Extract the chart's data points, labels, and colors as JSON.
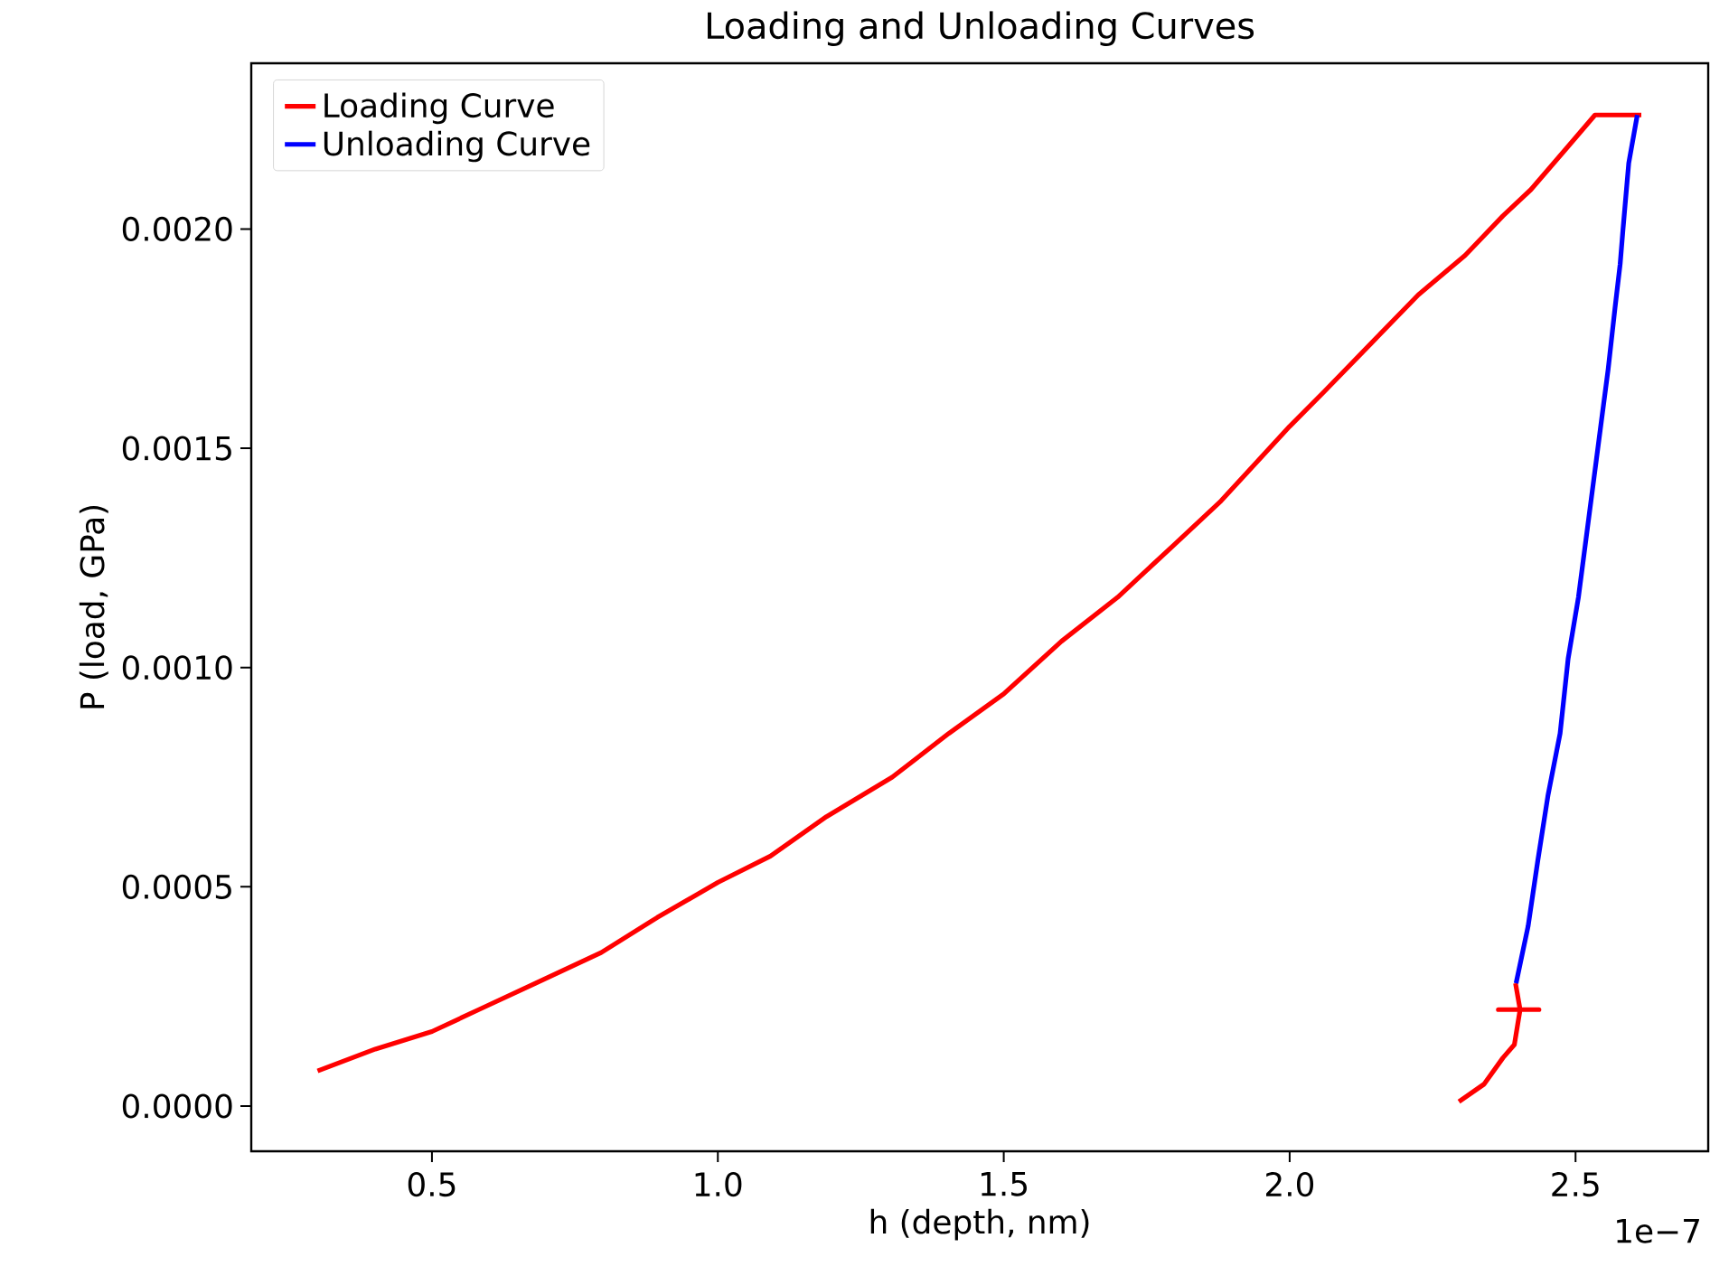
{
  "chart_data": {
    "type": "line",
    "title": "Loading and Unloading Curves",
    "xlabel": "h (depth, nm)",
    "ylabel": "P (load, GPa)",
    "xlim": [
      0.184,
      2.732
    ],
    "ylim": [
      -0.000103,
      0.002378
    ],
    "xticks": [
      0.5,
      {
        "value": 1,
        "label": "1.0"
      },
      1.5,
      {
        "value": 2,
        "label": "2.0"
      },
      2.5
    ],
    "yticks": [
      {
        "value": 0,
        "label": "0.0000"
      },
      {
        "value": 0.0005,
        "label": "0.0005"
      },
      {
        "value": 0.001,
        "label": "0.0010"
      },
      {
        "value": 0.0015,
        "label": "0.0015"
      },
      {
        "value": 0.002,
        "label": "0.0020"
      }
    ],
    "annotations": [
      "1e−7"
    ],
    "legend": "top left",
    "marker": "none",
    "line_style": "solid",
    "series": [
      {
        "name": "Loading Curve",
        "color": "#ff0000",
        "x": [
          0.3,
          0.401,
          0.5,
          0.582,
          0.681,
          0.796,
          0.894,
          1.0,
          1.092,
          1.19,
          1.305,
          1.404,
          1.5,
          1.601,
          1.699,
          1.798,
          1.88,
          2.0,
          2.061,
          2.143,
          2.225,
          2.307,
          2.373,
          2.422,
          2.488,
          2.534,
          2.615,
          null,
          2.296,
          2.34,
          2.373,
          2.393,
          2.403,
          2.365,
          2.436,
          2.403,
          2.395
        ],
        "values": [
          8e-05,
          0.00013,
          0.00017,
          0.00022,
          0.00028,
          0.00035,
          0.00043,
          0.00051,
          0.00057,
          0.00066,
          0.00075,
          0.00085,
          0.00094,
          0.00106,
          0.00116,
          0.00128,
          0.00138,
          0.00155,
          0.00163,
          0.00174,
          0.00185,
          0.00194,
          0.00203,
          0.00209,
          0.00219,
          0.00226,
          0.00226,
          null,
          1e-05,
          5e-05,
          0.00011,
          0.00014,
          0.00022,
          0.00022,
          0.00022,
          0.00022,
          0.00028
        ]
      },
      {
        "name": "Unloading Curve",
        "color": "#0000ff",
        "x": [
          2.608,
          2.593,
          2.583,
          2.578,
          2.569,
          2.557,
          2.545,
          2.532,
          2.52,
          2.505,
          2.487,
          2.473,
          2.452,
          2.434,
          2.417,
          2.396
        ],
        "values": [
          0.00226,
          0.00215,
          0.002,
          0.00192,
          0.00182,
          0.00168,
          0.00156,
          0.00143,
          0.00131,
          0.00116,
          0.00102,
          0.00085,
          0.00071,
          0.00056,
          0.00041,
          0.00028
        ]
      }
    ]
  }
}
